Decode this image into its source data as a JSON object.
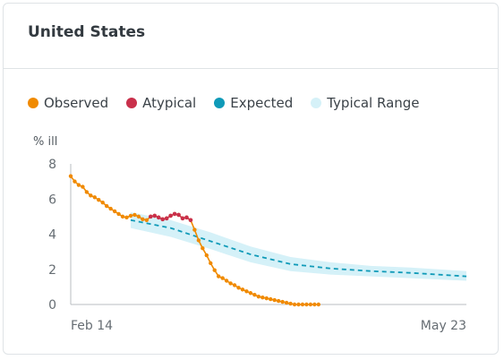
{
  "card": {
    "title": "United States"
  },
  "legend": [
    {
      "label": "Observed",
      "color": "#f08a00",
      "icon": "dot"
    },
    {
      "label": "Atypical",
      "color": "#c9304b",
      "icon": "dot"
    },
    {
      "label": "Expected",
      "color": "#0f9ab8",
      "icon": "dot"
    },
    {
      "label": "Typical Range",
      "color": "#d5f1f8",
      "icon": "dot"
    }
  ],
  "chart_data": {
    "type": "line",
    "title": "United States",
    "ylabel": "% ill",
    "xlabel": "",
    "ylim": [
      0,
      8
    ],
    "yticks": [
      0,
      2,
      4,
      6,
      8
    ],
    "x_start": "Feb 14",
    "x_end": "May 23",
    "x_tick_labels": [
      "Feb 14",
      "May 23"
    ],
    "x_unit": "days",
    "x_range": [
      0,
      99
    ],
    "grid": false,
    "legend_position": "top",
    "series": [
      {
        "name": "Observed",
        "color": "#f08a00",
        "style": "line-with-dots",
        "x": [
          0,
          1,
          2,
          3,
          4,
          5,
          6,
          7,
          8,
          9,
          10,
          11,
          12,
          13,
          14,
          15,
          16,
          17,
          18,
          19,
          20,
          21,
          22,
          23,
          24,
          25,
          26,
          27,
          28,
          29,
          30,
          31,
          32,
          33,
          34,
          35,
          36,
          37,
          38,
          39,
          40,
          41,
          42,
          43,
          44,
          45,
          46,
          47,
          48,
          49,
          50,
          51,
          52,
          53,
          54,
          55,
          56,
          57,
          58,
          59,
          60,
          61,
          62
        ],
        "y": [
          7.3,
          7.0,
          6.8,
          6.7,
          6.4,
          6.2,
          6.1,
          5.95,
          5.8,
          5.6,
          5.45,
          5.3,
          5.15,
          5.0,
          4.95,
          5.05,
          5.1,
          5.0,
          4.85,
          4.8,
          5.0,
          5.05,
          4.95,
          4.85,
          4.9,
          5.05,
          5.15,
          5.1,
          4.9,
          4.95,
          4.8,
          4.25,
          3.65,
          3.2,
          2.8,
          2.35,
          1.95,
          1.6,
          1.5,
          1.35,
          1.2,
          1.1,
          0.95,
          0.85,
          0.75,
          0.65,
          0.55,
          0.45,
          0.4,
          0.35,
          0.3,
          0.25,
          0.2,
          0.15,
          0.1,
          0.05,
          0.0,
          0.0,
          0.0,
          0.0,
          0.0,
          0.0,
          0.0
        ]
      },
      {
        "name": "Atypical",
        "color": "#c9304b",
        "style": "dots",
        "x": [
          20,
          21,
          22,
          23,
          24,
          25,
          26,
          27,
          28,
          29,
          30
        ],
        "y": [
          5.0,
          5.05,
          4.95,
          4.85,
          4.9,
          5.05,
          5.15,
          5.1,
          4.9,
          4.95,
          4.8
        ]
      },
      {
        "name": "Expected",
        "color": "#0f9ab8",
        "style": "dashed",
        "x": [
          15,
          25,
          35,
          45,
          55,
          65,
          75,
          85,
          99
        ],
        "y": [
          4.8,
          4.35,
          3.6,
          2.85,
          2.3,
          2.05,
          1.9,
          1.8,
          1.6
        ]
      },
      {
        "name": "Typical Range",
        "color": "#d5f1f8",
        "style": "band",
        "x": [
          15,
          25,
          35,
          45,
          55,
          65,
          75,
          85,
          99
        ],
        "low": [
          4.35,
          3.85,
          3.15,
          2.4,
          1.9,
          1.7,
          1.6,
          1.5,
          1.35
        ],
        "high": [
          5.25,
          4.8,
          4.1,
          3.3,
          2.7,
          2.4,
          2.2,
          2.1,
          1.9
        ]
      }
    ]
  }
}
